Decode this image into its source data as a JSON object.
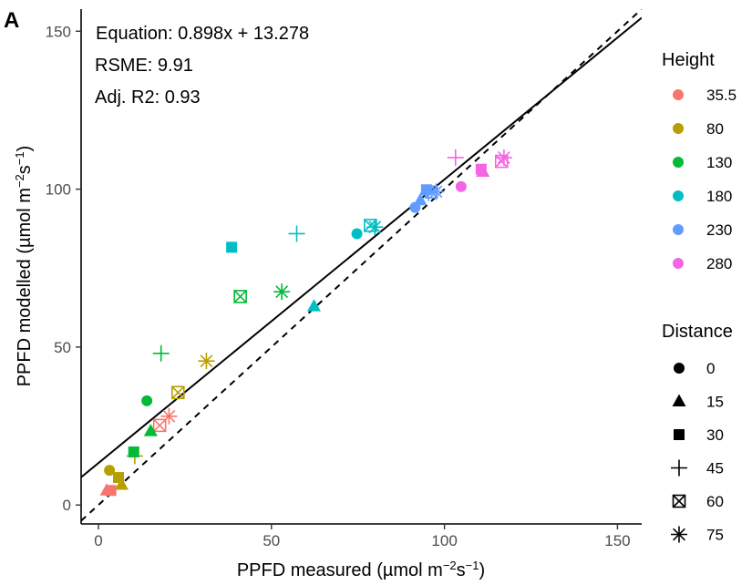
{
  "chart_data": {
    "type": "scatter",
    "panel_label": "A",
    "xlabel": {
      "main": "PPFD measured (µmol m",
      "sup1": "−2",
      "mid": "s",
      "sup2": "−1",
      "tail": ")"
    },
    "ylabel": {
      "main": "PPFD modelled (µmol m",
      "sup1": "−2",
      "mid": "s",
      "sup2": "−1",
      "tail": ")"
    },
    "xlim": [
      -5,
      157
    ],
    "ylim": [
      -6,
      157
    ],
    "x_ticks": [
      0,
      50,
      100,
      150
    ],
    "y_ticks": [
      0,
      50,
      100,
      150
    ],
    "annotations": [
      "Equation: 0.898x + 13.278",
      "RSME: 9.91",
      "Adj. R2: 0.93"
    ],
    "fit_line": {
      "slope": 0.898,
      "intercept": 13.278,
      "style": "solid"
    },
    "identity_line": {
      "slope": 1,
      "intercept": 0,
      "style": "dashed"
    },
    "legend_height": {
      "title": "Height",
      "entries": [
        {
          "label": "35.5",
          "color": "#F8766D"
        },
        {
          "label": "80",
          "color": "#B79F00"
        },
        {
          "label": "130",
          "color": "#00BA38"
        },
        {
          "label": "180",
          "color": "#00BFC4"
        },
        {
          "label": "230",
          "color": "#619CFF"
        },
        {
          "label": "280",
          "color": "#F564E3"
        }
      ]
    },
    "legend_distance": {
      "title": "Distance",
      "entries": [
        {
          "label": "0",
          "shape": "circle"
        },
        {
          "label": "15",
          "shape": "triangle"
        },
        {
          "label": "30",
          "shape": "square"
        },
        {
          "label": "45",
          "shape": "plus"
        },
        {
          "label": "60",
          "shape": "boxx"
        },
        {
          "label": "75",
          "shape": "asterisk"
        }
      ]
    },
    "points": [
      {
        "x": 3.2,
        "y": 11.0,
        "height": "80",
        "distance": "0"
      },
      {
        "x": 6.7,
        "y": 6.4,
        "height": "80",
        "distance": "15"
      },
      {
        "x": 5.8,
        "y": 8.7,
        "height": "80",
        "distance": "30"
      },
      {
        "x": 23.0,
        "y": 35.6,
        "height": "80",
        "distance": "60"
      },
      {
        "x": 31.2,
        "y": 45.6,
        "height": "80",
        "distance": "75"
      },
      {
        "x": 10.5,
        "y": 15.5,
        "height": "80",
        "distance": "45"
      },
      {
        "x": 2.4,
        "y": 4.6,
        "height": "35.5",
        "distance": "15"
      },
      {
        "x": 3.6,
        "y": 4.6,
        "height": "35.5",
        "distance": "30"
      },
      {
        "x": 17.7,
        "y": 25.2,
        "height": "35.5",
        "distance": "60"
      },
      {
        "x": 20.4,
        "y": 28.1,
        "height": "35.5",
        "distance": "75"
      },
      {
        "x": 14.0,
        "y": 33.0,
        "height": "130",
        "distance": "0"
      },
      {
        "x": 15.1,
        "y": 23.4,
        "height": "130",
        "distance": "15"
      },
      {
        "x": 10.2,
        "y": 16.8,
        "height": "130",
        "distance": "30"
      },
      {
        "x": 18.1,
        "y": 48.0,
        "height": "130",
        "distance": "45"
      },
      {
        "x": 41.0,
        "y": 66.0,
        "height": "130",
        "distance": "60"
      },
      {
        "x": 53.0,
        "y": 67.5,
        "height": "130",
        "distance": "75"
      },
      {
        "x": 74.7,
        "y": 85.9,
        "height": "180",
        "distance": "0"
      },
      {
        "x": 62.3,
        "y": 62.9,
        "height": "180",
        "distance": "15"
      },
      {
        "x": 38.5,
        "y": 81.6,
        "height": "180",
        "distance": "30"
      },
      {
        "x": 57.3,
        "y": 85.9,
        "height": "180",
        "distance": "45"
      },
      {
        "x": 78.6,
        "y": 88.5,
        "height": "180",
        "distance": "60"
      },
      {
        "x": 79.9,
        "y": 88.0,
        "height": "180",
        "distance": "75"
      },
      {
        "x": 91.5,
        "y": 94.2,
        "height": "230",
        "distance": "0"
      },
      {
        "x": 93.0,
        "y": 96.5,
        "height": "230",
        "distance": "15"
      },
      {
        "x": 94.8,
        "y": 99.8,
        "height": "230",
        "distance": "30"
      },
      {
        "x": 95.4,
        "y": 98.8,
        "height": "230",
        "distance": "45"
      },
      {
        "x": 96.2,
        "y": 99.1,
        "height": "230",
        "distance": "60"
      },
      {
        "x": 97.6,
        "y": 99.2,
        "height": "230",
        "distance": "75"
      },
      {
        "x": 104.8,
        "y": 100.8,
        "height": "280",
        "distance": "0"
      },
      {
        "x": 111.1,
        "y": 105.5,
        "height": "280",
        "distance": "15"
      },
      {
        "x": 110.6,
        "y": 106.3,
        "height": "280",
        "distance": "30"
      },
      {
        "x": 103.2,
        "y": 110.0,
        "height": "280",
        "distance": "45"
      },
      {
        "x": 116.5,
        "y": 108.8,
        "height": "280",
        "distance": "60"
      },
      {
        "x": 117.2,
        "y": 110.0,
        "height": "280",
        "distance": "75"
      }
    ]
  }
}
